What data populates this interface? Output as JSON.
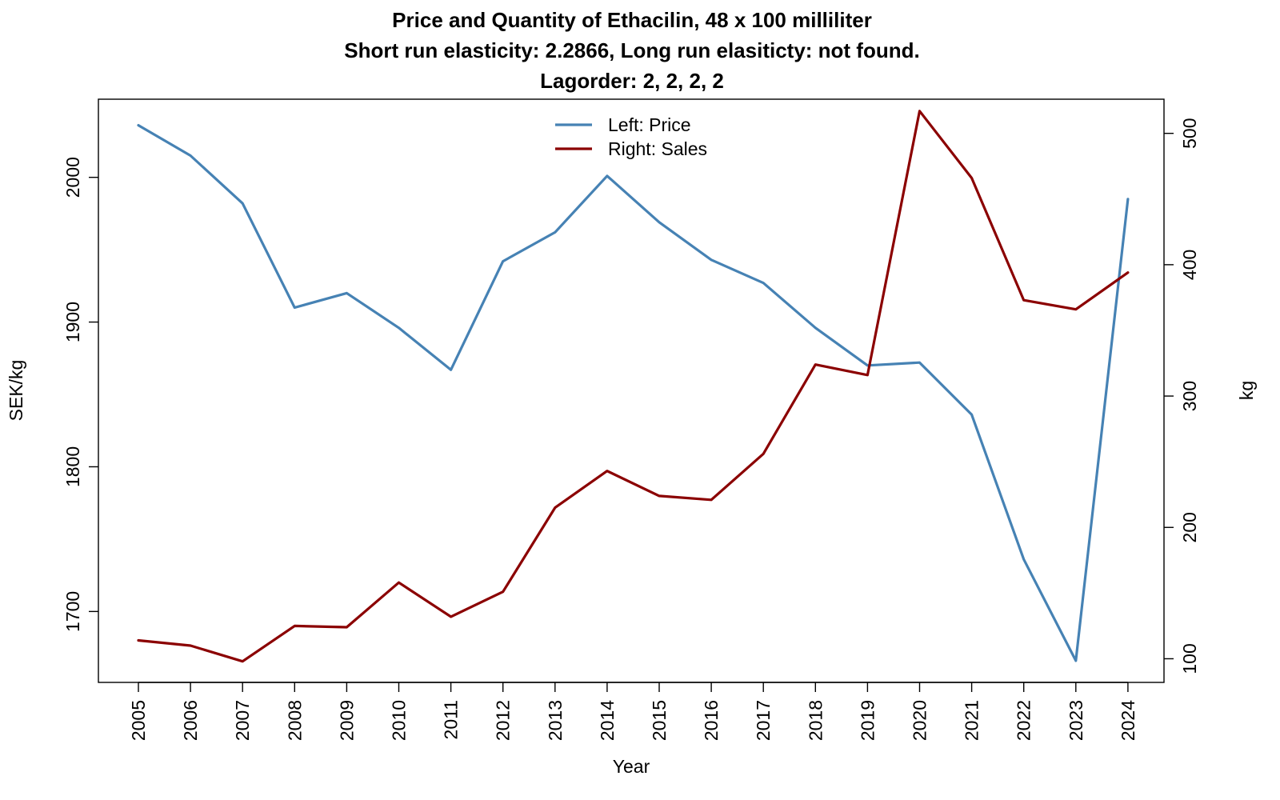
{
  "chart_data": {
    "type": "line",
    "title_lines": [
      "Price and Quantity of Ethacilin, 48 x 100 milliliter",
      "Short run elasticity: 2.2866,   Long run elasiticty: not found.",
      "Lagorder: 2, 2, 2, 2"
    ],
    "xlabel": "Year",
    "ylabel_left": "SEK/kg",
    "ylabel_right": "kg",
    "x": [
      "2005",
      "2006",
      "2007",
      "2008",
      "2009",
      "2010",
      "2011",
      "2012",
      "2013",
      "2014",
      "2015",
      "2016",
      "2017",
      "2018",
      "2019",
      "2020",
      "2021",
      "2022",
      "2023",
      "2024"
    ],
    "left_axis": {
      "range": [
        1651,
        2054
      ],
      "ticks": [
        "1700",
        "1800",
        "1900",
        "2000"
      ]
    },
    "right_axis": {
      "range": [
        82,
        526
      ],
      "ticks": [
        "100",
        "200",
        "300",
        "400",
        "500"
      ]
    },
    "series": [
      {
        "name": "Left: Price",
        "axis": "left",
        "color": "#4682B4",
        "values": [
          2036,
          2015,
          1982,
          1910,
          1920,
          1896,
          1867,
          1942,
          1962,
          2001,
          1969,
          1943,
          1927,
          1896,
          1870,
          1872,
          1836,
          1736,
          1666,
          1985
        ]
      },
      {
        "name": "Right: Sales",
        "axis": "right",
        "color": "#8B0000",
        "values": [
          114,
          110,
          98,
          125,
          124,
          158,
          132,
          151,
          215,
          243,
          224,
          221,
          256,
          324,
          316,
          517,
          466,
          373,
          366,
          394
        ]
      }
    ],
    "grid": false,
    "legend_position": "top-center"
  }
}
